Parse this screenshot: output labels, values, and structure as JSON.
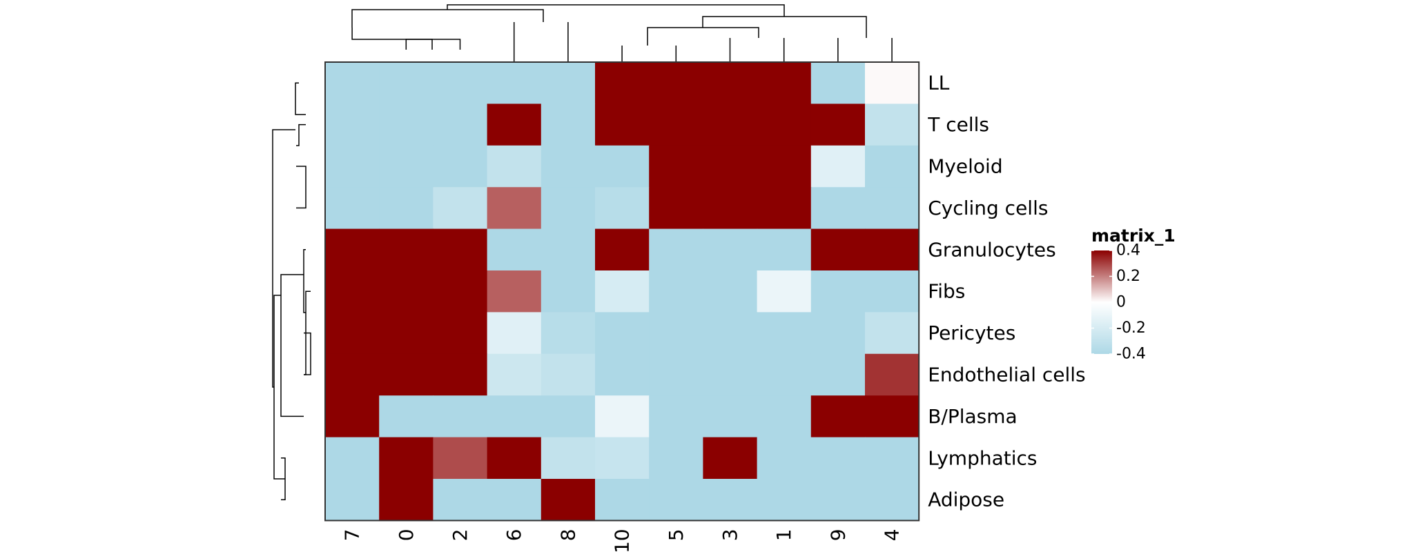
{
  "chart_data": {
    "type": "heatmap",
    "rows": [
      "LL",
      "T cells",
      "Myeloid",
      "Cycling cells",
      "Granulocytes",
      "Fibs",
      "Pericytes",
      "Endothelial cells",
      "B/Plasma",
      "Lymphatics",
      "Adipose"
    ],
    "columns": [
      "7",
      "0",
      "2",
      "6",
      "8",
      "10",
      "5",
      "3",
      "1",
      "9",
      "4"
    ],
    "values": [
      [
        -0.4,
        -0.4,
        -0.4,
        -0.4,
        -0.4,
        0.4,
        0.4,
        0.4,
        0.4,
        -0.4,
        0.01
      ],
      [
        -0.4,
        -0.4,
        -0.4,
        0.4,
        -0.4,
        0.4,
        0.4,
        0.4,
        0.4,
        0.4,
        -0.3
      ],
      [
        -0.4,
        -0.4,
        -0.4,
        -0.3,
        -0.4,
        -0.4,
        0.4,
        0.4,
        0.4,
        -0.15,
        -0.4
      ],
      [
        -0.4,
        -0.4,
        -0.3,
        0.25,
        -0.4,
        -0.35,
        0.4,
        0.4,
        0.4,
        -0.4,
        -0.4
      ],
      [
        0.4,
        0.4,
        0.4,
        -0.4,
        -0.4,
        0.4,
        -0.4,
        -0.4,
        -0.4,
        0.4,
        0.4
      ],
      [
        0.4,
        0.4,
        0.4,
        0.25,
        -0.4,
        -0.2,
        -0.4,
        -0.4,
        -0.1,
        -0.4,
        -0.4
      ],
      [
        0.4,
        0.4,
        0.4,
        -0.15,
        -0.35,
        -0.4,
        -0.4,
        -0.4,
        -0.4,
        -0.4,
        -0.3
      ],
      [
        0.4,
        0.4,
        0.4,
        -0.25,
        -0.3,
        -0.4,
        -0.4,
        -0.4,
        -0.4,
        -0.4,
        0.32
      ],
      [
        0.4,
        -0.4,
        -0.4,
        -0.4,
        -0.4,
        -0.1,
        -0.4,
        -0.4,
        -0.4,
        0.4,
        0.4
      ],
      [
        -0.4,
        0.4,
        0.28,
        0.4,
        -0.3,
        -0.28,
        -0.4,
        0.4,
        -0.4,
        -0.4,
        -0.4
      ],
      [
        -0.4,
        0.4,
        -0.4,
        -0.4,
        0.4,
        -0.4,
        -0.4,
        -0.4,
        -0.4,
        -0.4,
        -0.4
      ]
    ],
    "color_scale": {
      "min": -0.4,
      "mid": 0,
      "max": 0.4,
      "low_color": "#add8e6",
      "mid_color": "#ffffff",
      "high_color": "#8b0000"
    },
    "legend": {
      "title": "matrix_1",
      "ticks": [
        "0.4",
        "0.2",
        "0",
        "-0.2",
        "-0.4"
      ],
      "placement": "right"
    },
    "row_dendrogram": true,
    "column_dendrogram": true,
    "row_label_position": "right",
    "column_label_orientation": "vertical"
  }
}
